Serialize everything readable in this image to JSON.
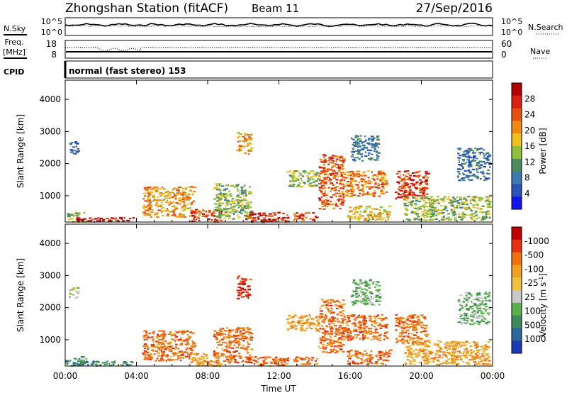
{
  "header": {
    "station": "Zhongshan Station (fitACF)",
    "beam": "Beam 11",
    "date": "27/Sep/2016"
  },
  "panel_labels": {
    "nsky": "N.Sky",
    "nsearch": "N.Search",
    "sky_top": "10^5",
    "sky_bottom": "10^0",
    "search_top": "10^5",
    "search_bottom": "10^0",
    "freq_top": "Freq.",
    "freq_unit": "[MHz]",
    "freq_max": "18",
    "freq_min": "8",
    "nave_label": "Nave",
    "nave_max": "60",
    "nave_min": "0",
    "cpid": "CPID",
    "mode": "normal (fast stereo) 153"
  },
  "colors": {
    "power": [
      "#1414f0",
      "#2a52b8",
      "#3a7ab0",
      "#4f8a5a",
      "#8fc23a",
      "#f0c020",
      "#f08a10",
      "#e85010",
      "#d82010",
      "#b00000"
    ],
    "velocity": [
      "#1c3cb4",
      "#2a6a9a",
      "#3a8a5a",
      "#5ab04a",
      "#c8c8c8",
      "#f0c040",
      "#f0a020",
      "#f07010",
      "#e83010",
      "#c00000"
    ]
  },
  "chart_data": [
    {
      "type": "heatmap",
      "name": "power",
      "xlabel": "",
      "ylabel": "Slant Range [km]",
      "x_ticks": [
        "00:00",
        "04:00",
        "08:00",
        "12:00",
        "16:00",
        "20:00",
        "00:00"
      ],
      "x_range_hours": [
        0,
        24
      ],
      "y_ticks": [
        1000,
        2000,
        3000,
        4000
      ],
      "ylim": [
        180,
        4600
      ],
      "colorbar": {
        "label": "Power [dB]",
        "ticks": [
          4,
          8,
          12,
          16,
          20,
          24,
          28
        ],
        "range": [
          0,
          32
        ]
      },
      "regions": [
        {
          "t": [
            0.0,
            1.2
          ],
          "r": [
            200,
            500
          ],
          "v": 14
        },
        {
          "t": [
            0.6,
            3.8
          ],
          "r": [
            200,
            350
          ],
          "v": 30
        },
        {
          "t": [
            0.2,
            0.7
          ],
          "r": [
            2300,
            2700
          ],
          "v": 6
        },
        {
          "t": [
            4.3,
            7.2
          ],
          "r": [
            350,
            1300
          ],
          "v": 20
        },
        {
          "t": [
            7.0,
            8.7
          ],
          "r": [
            200,
            600
          ],
          "v": 26
        },
        {
          "t": [
            8.3,
            10.4
          ],
          "r": [
            300,
            1400
          ],
          "v": 14
        },
        {
          "t": [
            9.6,
            10.4
          ],
          "r": [
            2300,
            3000
          ],
          "v": 20
        },
        {
          "t": [
            10.0,
            12.5
          ],
          "r": [
            200,
            500
          ],
          "v": 28
        },
        {
          "t": [
            12.4,
            14.2
          ],
          "r": [
            1300,
            1800
          ],
          "v": 14
        },
        {
          "t": [
            12.8,
            14.2
          ],
          "r": [
            250,
            500
          ],
          "v": 26
        },
        {
          "t": [
            14.2,
            15.6
          ],
          "r": [
            600,
            2300
          ],
          "v": 24
        },
        {
          "t": [
            15.4,
            18.0
          ],
          "r": [
            1000,
            1800
          ],
          "v": 22
        },
        {
          "t": [
            16.0,
            17.6
          ],
          "r": [
            2100,
            2900
          ],
          "v": 8
        },
        {
          "t": [
            15.8,
            18.2
          ],
          "r": [
            250,
            700
          ],
          "v": 18
        },
        {
          "t": [
            18.5,
            20.3
          ],
          "r": [
            900,
            1800
          ],
          "v": 26
        },
        {
          "t": [
            19.0,
            23.8
          ],
          "r": [
            250,
            1000
          ],
          "v": 14
        },
        {
          "t": [
            22.0,
            23.8
          ],
          "r": [
            1500,
            2500
          ],
          "v": 8
        }
      ]
    },
    {
      "type": "heatmap",
      "name": "velocity",
      "xlabel": "Time UT",
      "ylabel": "Slant Range [km]",
      "x_ticks": [
        "00:00",
        "04:00",
        "08:00",
        "12:00",
        "16:00",
        "20:00",
        "00:00"
      ],
      "x_range_hours": [
        0,
        24
      ],
      "y_ticks": [
        1000,
        2000,
        3000,
        4000
      ],
      "ylim": [
        180,
        4600
      ],
      "colorbar": {
        "label": "Velocity [m s^-1]",
        "ticks": [
          "1000",
          "500",
          "100",
          "25",
          "-25",
          "-100",
          "-500",
          "-1000"
        ]
      },
      "regions": [
        {
          "t": [
            0.0,
            1.2
          ],
          "r": [
            200,
            500
          ],
          "v": 2
        },
        {
          "t": [
            0.6,
            3.8
          ],
          "r": [
            200,
            350
          ],
          "v": 2
        },
        {
          "t": [
            0.2,
            0.7
          ],
          "r": [
            2300,
            2700
          ],
          "v": 4
        },
        {
          "t": [
            4.3,
            7.2
          ],
          "r": [
            350,
            1300
          ],
          "v": 7
        },
        {
          "t": [
            7.0,
            8.7
          ],
          "r": [
            200,
            600
          ],
          "v": 6
        },
        {
          "t": [
            8.3,
            10.4
          ],
          "r": [
            300,
            1400
          ],
          "v": 7
        },
        {
          "t": [
            9.6,
            10.4
          ],
          "r": [
            2300,
            3000
          ],
          "v": 8
        },
        {
          "t": [
            10.0,
            12.5
          ],
          "r": [
            200,
            500
          ],
          "v": 7
        },
        {
          "t": [
            12.4,
            14.2
          ],
          "r": [
            1300,
            1800
          ],
          "v": 6
        },
        {
          "t": [
            12.8,
            14.2
          ],
          "r": [
            250,
            500
          ],
          "v": 7
        },
        {
          "t": [
            14.2,
            15.6
          ],
          "r": [
            600,
            2300
          ],
          "v": 7
        },
        {
          "t": [
            15.4,
            18.0
          ],
          "r": [
            1000,
            1800
          ],
          "v": 7
        },
        {
          "t": [
            16.0,
            17.6
          ],
          "r": [
            2100,
            2900
          ],
          "v": 3
        },
        {
          "t": [
            15.8,
            18.2
          ],
          "r": [
            250,
            700
          ],
          "v": 7
        },
        {
          "t": [
            18.5,
            20.3
          ],
          "r": [
            900,
            1800
          ],
          "v": 7
        },
        {
          "t": [
            19.0,
            23.8
          ],
          "r": [
            250,
            1000
          ],
          "v": 6
        },
        {
          "t": [
            22.0,
            23.8
          ],
          "r": [
            1500,
            2500
          ],
          "v": 3
        }
      ]
    }
  ]
}
